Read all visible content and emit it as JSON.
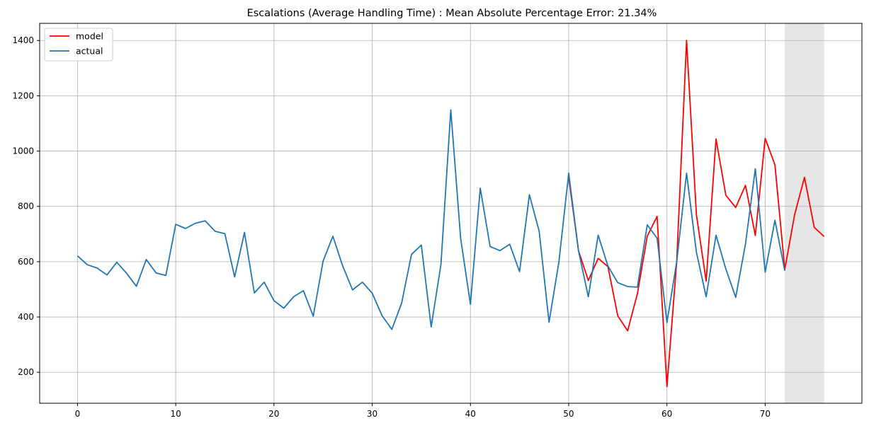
{
  "chart_data": {
    "type": "line",
    "title": "Escalations (Average Handling Time) : Mean Absolute Percentage Error: 21.34%",
    "xlabel": "",
    "ylabel": "",
    "xlim": [
      -3.85,
      79.85
    ],
    "ylim": [
      88,
      1462
    ],
    "x_ticks": [
      0,
      10,
      20,
      30,
      40,
      50,
      60,
      70
    ],
    "y_ticks": [
      200,
      400,
      600,
      800,
      1000,
      1200,
      1400
    ],
    "grid": true,
    "legend_position": "top-left",
    "forecast_region": {
      "x_start": 72,
      "x_end": 76,
      "color": "#e6e6e6"
    },
    "series": [
      {
        "name": "model",
        "color": "#ff0000",
        "x": [
          50,
          51,
          52,
          53,
          54,
          55,
          56,
          57,
          58,
          59,
          60,
          61,
          62,
          63,
          64,
          65,
          66,
          67,
          68,
          69,
          70,
          71,
          72,
          73,
          74,
          75,
          76
        ],
        "values": [
          905,
          640,
          532,
          612,
          582,
          404,
          350,
          484,
          692,
          764,
          148,
          600,
          1400,
          770,
          530,
          1044,
          840,
          796,
          876,
          695,
          1046,
          950,
          572,
          770,
          905,
          724,
          691
        ]
      },
      {
        "name": "actual",
        "color": "#1f77b4",
        "x": [
          0,
          1,
          2,
          3,
          4,
          5,
          6,
          7,
          8,
          9,
          10,
          11,
          12,
          13,
          14,
          15,
          16,
          17,
          18,
          19,
          20,
          21,
          22,
          23,
          24,
          25,
          26,
          27,
          28,
          29,
          30,
          31,
          32,
          33,
          34,
          35,
          36,
          37,
          38,
          39,
          40,
          41,
          42,
          43,
          44,
          45,
          46,
          47,
          48,
          49,
          50,
          51,
          52,
          53,
          54,
          55,
          56,
          57,
          58,
          59,
          60,
          61,
          62,
          63,
          64,
          65,
          66,
          67,
          68,
          69,
          70,
          71,
          72
        ],
        "values": [
          621,
          589,
          577,
          552,
          598,
          558,
          511,
          608,
          559,
          550,
          735,
          720,
          739,
          748,
          710,
          701,
          545,
          706,
          487,
          526,
          459,
          432,
          473,
          495,
          403,
          602,
          692,
          584,
          498,
          526,
          486,
          405,
          355,
          450,
          626,
          660,
          364,
          590,
          1149,
          685,
          446,
          866,
          655,
          640,
          663,
          564,
          842,
          710,
          381,
          598,
          920,
          640,
          473,
          696,
          584,
          524,
          510,
          508,
          733,
          685,
          380,
          600,
          920,
          634,
          473,
          696,
          573,
          471,
          664,
          936,
          562,
          750,
          567
        ]
      }
    ]
  }
}
